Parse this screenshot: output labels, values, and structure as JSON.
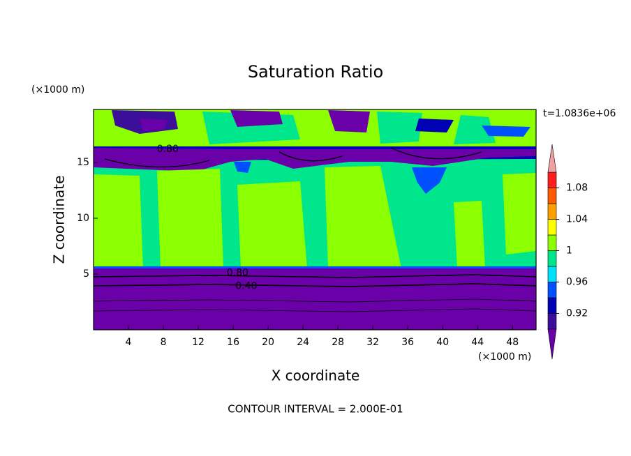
{
  "chart_data": {
    "type": "contour",
    "title": "Saturation Ratio",
    "x_label": "X coordinate",
    "y_label": "Z coordinate",
    "x_unit": "(×1000 m)",
    "y_unit": "(×1000 m)",
    "time_label": "t=1.0836e+06",
    "footer": "CONTOUR INTERVAL = 2.000E-01",
    "xlim": [
      0,
      50.7
    ],
    "xticks": [
      4,
      8,
      12,
      16,
      20,
      24,
      28,
      32,
      36,
      40,
      44,
      48
    ],
    "ylim": [
      0,
      19.75
    ],
    "yticks": [
      5,
      10,
      15
    ],
    "contour_labels": [
      {
        "value": 0.8,
        "label": "0.80",
        "x": 8.5,
        "z": 16.2
      },
      {
        "value": 0.8,
        "label": "0.80",
        "x": 16.5,
        "z": 5.1
      },
      {
        "value": 0.4,
        "label": "0.40",
        "x": 17.5,
        "z": 3.9
      }
    ],
    "colorbar": {
      "levels": [
        0.9,
        0.92,
        0.94,
        0.96,
        0.98,
        1,
        1.02,
        1.04,
        1.06,
        1.08,
        1.1
      ],
      "colors": [
        "#3c0f9b",
        "#0000b4",
        "#0050ff",
        "#00e1ff",
        "#00e68c",
        "#8cff00",
        "#ffff00",
        "#ffa000",
        "#ff5a00",
        "#ff1e1e"
      ],
      "under_color": "#6a00a8",
      "over_color": "#f0a0a0",
      "ticks": [
        0.92,
        0.96,
        1,
        1.04,
        1.08
      ]
    }
  }
}
